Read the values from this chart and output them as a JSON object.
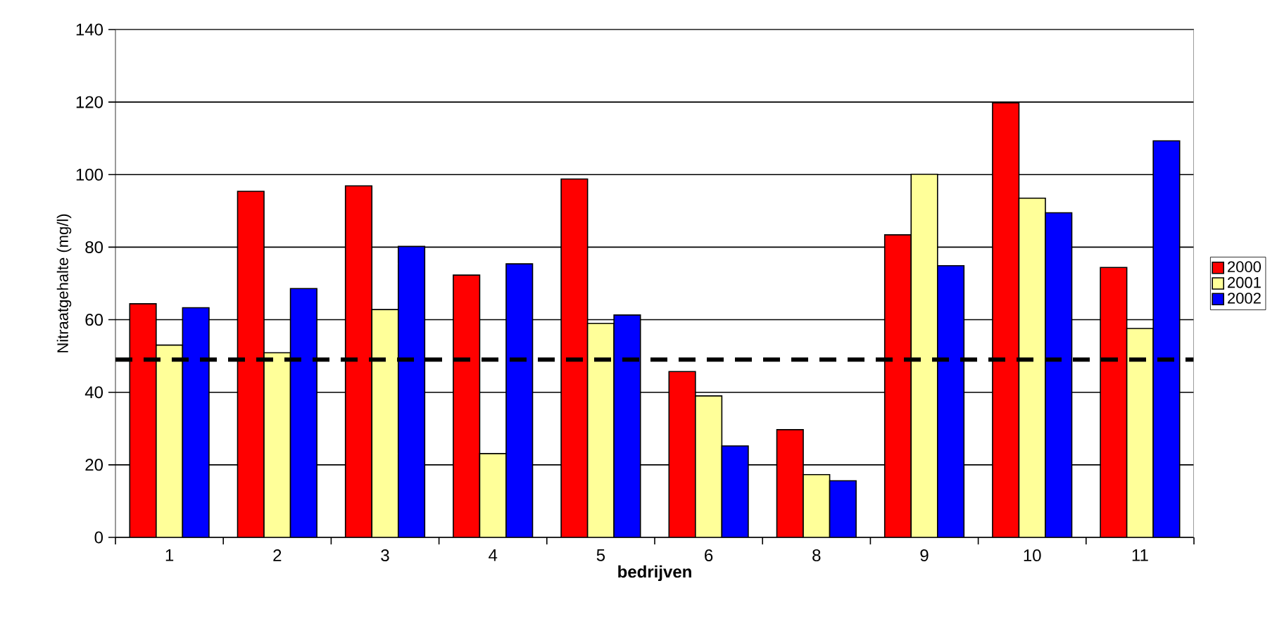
{
  "chart_data": {
    "type": "bar",
    "xlabel": "bedrijven",
    "ylabel": "Nitraatgehalte (mg/l)",
    "categories": [
      "1",
      "2",
      "3",
      "4",
      "5",
      "6",
      "8",
      "9",
      "10",
      "11"
    ],
    "series": [
      {
        "name": "2000",
        "color": "#ff0000",
        "values": [
          64.4,
          95.4,
          96.9,
          72.3,
          98.8,
          45.7,
          29.7,
          83.4,
          119.8,
          74.4
        ]
      },
      {
        "name": "2001",
        "color": "#ffff99",
        "values": [
          53,
          50.9,
          62.8,
          23.1,
          59,
          39,
          17.3,
          100.1,
          93.5,
          57.6
        ]
      },
      {
        "name": "2002",
        "color": "#0000ff",
        "values": [
          63.3,
          68.6,
          80.2,
          75.4,
          61.3,
          25.2,
          15.6,
          74.9,
          89.5,
          109.3
        ]
      }
    ],
    "ylim": [
      0,
      140
    ],
    "yticks": [
      0,
      20,
      40,
      60,
      80,
      100,
      120,
      140
    ],
    "grid": "y",
    "legend": "right",
    "ref_lines": [
      {
        "axis": "y",
        "value": 49,
        "color": "#000000",
        "line_style": "dashed"
      }
    ]
  }
}
